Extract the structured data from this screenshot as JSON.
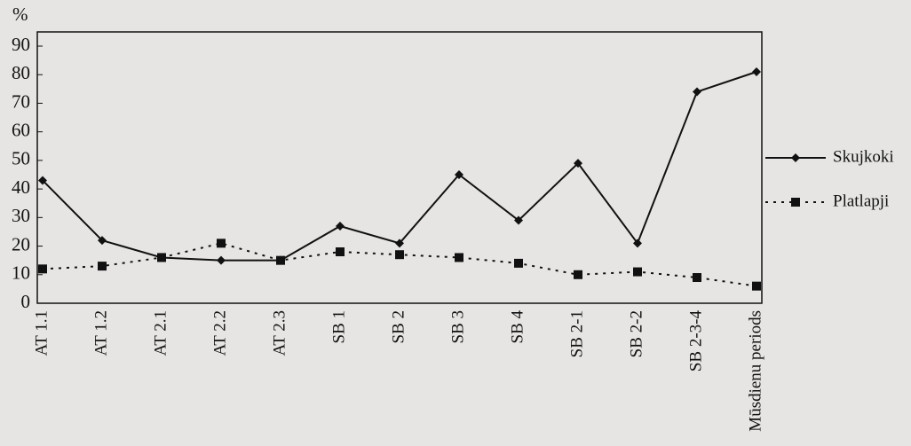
{
  "chart_data": {
    "type": "line",
    "y_label": "%",
    "categories": [
      "AT 1.1",
      "AT 1.2",
      "AT 2.1",
      "AT 2.2",
      "AT 2.3",
      "SB 1",
      "SB 2",
      "SB 3",
      "SB 4",
      "SB 2-1",
      "SB 2-2",
      "SB 2-3-4",
      "Mūsdienu periods"
    ],
    "series": [
      {
        "name": "Skujkoki",
        "color": "#111111",
        "line": "solid",
        "marker": "diamond",
        "values": [
          43,
          22,
          16,
          15,
          15,
          27,
          21,
          45,
          29,
          49,
          21,
          74,
          81
        ]
      },
      {
        "name": "Platlapji",
        "color": "#111111",
        "line": "dotted",
        "marker": "square",
        "values": [
          12,
          13,
          16,
          21,
          15,
          18,
          17,
          16,
          14,
          10,
          11,
          9,
          6
        ]
      }
    ],
    "ylim": [
      0,
      90
    ],
    "yticks": [
      0,
      10,
      20,
      30,
      40,
      50,
      60,
      70,
      80,
      90
    ],
    "legend": "right"
  }
}
